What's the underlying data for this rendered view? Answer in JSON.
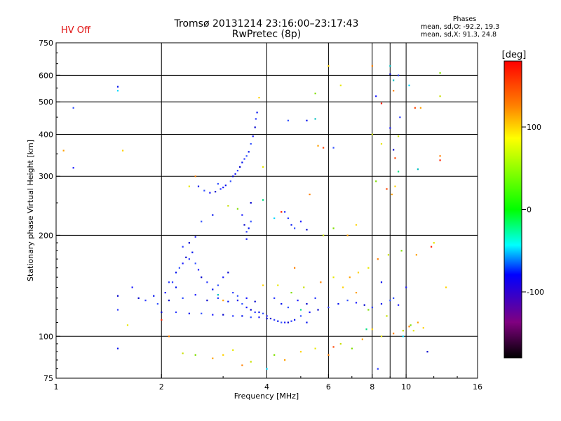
{
  "status": "HV Off",
  "title_line1": "Tromsø 20131214 23:16:00–23:17:43",
  "title_line2": "RwPretec (8p)",
  "phase_stats": {
    "title": "Phases",
    "line_o": "mean, sd,O: -92.2, 19.3",
    "line_x": "mean, sd,X:  91.3, 24.8"
  },
  "chart_data": {
    "type": "scatter",
    "xlabel": "Frequency [MHz]",
    "ylabel": "Stationary phase Virtual Height [km]",
    "x_scale": "log",
    "y_scale": "log",
    "xlim": [
      1,
      16
    ],
    "ylim": [
      75,
      750
    ],
    "x_ticks": [
      1,
      2,
      4,
      6,
      8,
      10,
      16
    ],
    "y_ticks": [
      75,
      100,
      200,
      300,
      400,
      500,
      600,
      750
    ],
    "x_gridlines": [
      2,
      4,
      6,
      8,
      9,
      10
    ],
    "y_gridlines": [
      100,
      200,
      300,
      400,
      500,
      600
    ],
    "grid": true,
    "colorbar": {
      "label": "[deg]",
      "range": [
        -180,
        180
      ],
      "ticks": [
        100,
        0,
        -100
      ],
      "colors": [
        "#ff0000",
        "#ff8000",
        "#ffff00",
        "#00ff00",
        "#00ffff",
        "#0000ff",
        "#800080",
        "#000000"
      ]
    },
    "series": [
      {
        "color_group": "o_mode_blue",
        "phase": -92.2,
        "points": [
          [
            1.65,
            140
          ],
          [
            1.72,
            130
          ],
          [
            1.8,
            128
          ],
          [
            1.9,
            132
          ],
          [
            1.95,
            125
          ],
          [
            2.05,
            135
          ],
          [
            2.1,
            128
          ],
          [
            2.15,
            145
          ],
          [
            2.2,
            155
          ],
          [
            2.25,
            160
          ],
          [
            2.3,
            165
          ],
          [
            2.35,
            172
          ],
          [
            2.4,
            170
          ],
          [
            2.45,
            178
          ],
          [
            2.5,
            165
          ],
          [
            2.55,
            158
          ],
          [
            2.6,
            150
          ],
          [
            2.7,
            145
          ],
          [
            2.8,
            138
          ],
          [
            2.9,
            142
          ],
          [
            3.0,
            150
          ],
          [
            3.1,
            155
          ],
          [
            3.2,
            135
          ],
          [
            3.3,
            128
          ],
          [
            3.4,
            125
          ],
          [
            3.5,
            122
          ],
          [
            3.6,
            120
          ],
          [
            3.7,
            118
          ],
          [
            3.8,
            118
          ],
          [
            3.9,
            117
          ],
          [
            4.0,
            115
          ],
          [
            4.1,
            113
          ],
          [
            4.2,
            112
          ],
          [
            4.3,
            111
          ],
          [
            4.4,
            110
          ],
          [
            4.5,
            110
          ],
          [
            4.6,
            110
          ],
          [
            4.7,
            111
          ],
          [
            4.8,
            112
          ],
          [
            5.0,
            115
          ],
          [
            5.3,
            118
          ],
          [
            5.6,
            120
          ],
          [
            6.0,
            122
          ],
          [
            6.4,
            125
          ],
          [
            6.8,
            128
          ],
          [
            7.2,
            126
          ],
          [
            7.6,
            124
          ],
          [
            8.0,
            122
          ],
          [
            8.5,
            125
          ],
          [
            9.0,
            128
          ],
          [
            9.5,
            124
          ],
          [
            2.0,
            118
          ],
          [
            2.2,
            118
          ],
          [
            2.4,
            117
          ],
          [
            2.6,
            117
          ],
          [
            2.8,
            116
          ],
          [
            3.0,
            116
          ],
          [
            3.2,
            115
          ],
          [
            3.4,
            115
          ],
          [
            3.6,
            114
          ],
          [
            3.8,
            114
          ],
          [
            4.0,
            113
          ],
          [
            2.1,
            145
          ],
          [
            2.2,
            140
          ],
          [
            2.3,
            130
          ],
          [
            2.5,
            133
          ],
          [
            2.7,
            128
          ],
          [
            2.9,
            130
          ],
          [
            3.1,
            127
          ],
          [
            3.3,
            132
          ],
          [
            3.5,
            130
          ],
          [
            3.7,
            127
          ],
          [
            4.2,
            130
          ],
          [
            4.4,
            125
          ],
          [
            4.6,
            122
          ],
          [
            4.9,
            128
          ],
          [
            5.2,
            125
          ],
          [
            5.5,
            130
          ],
          [
            2.55,
            280
          ],
          [
            2.65,
            272
          ],
          [
            2.75,
            268
          ],
          [
            2.85,
            270
          ],
          [
            2.95,
            275
          ],
          [
            3.05,
            282
          ],
          [
            3.15,
            290
          ],
          [
            3.25,
            305
          ],
          [
            3.35,
            320
          ],
          [
            3.45,
            338
          ],
          [
            3.55,
            355
          ],
          [
            3.6,
            375
          ],
          [
            3.65,
            395
          ],
          [
            3.7,
            420
          ],
          [
            3.72,
            445
          ],
          [
            3.75,
            465
          ],
          [
            2.9,
            285
          ],
          [
            3.0,
            278
          ],
          [
            3.2,
            300
          ],
          [
            3.3,
            312
          ],
          [
            3.4,
            330
          ],
          [
            3.5,
            345
          ],
          [
            3.4,
            230
          ],
          [
            3.45,
            215
          ],
          [
            3.5,
            205
          ],
          [
            3.55,
            210
          ],
          [
            3.6,
            220
          ],
          [
            3.5,
            195
          ],
          [
            3.6,
            250
          ],
          [
            4.6,
            225
          ],
          [
            4.7,
            215
          ],
          [
            4.8,
            210
          ],
          [
            5.0,
            220
          ],
          [
            5.2,
            208
          ],
          [
            4.5,
            235
          ],
          [
            2.8,
            230
          ],
          [
            2.6,
            220
          ],
          [
            2.5,
            198
          ],
          [
            2.4,
            190
          ],
          [
            2.3,
            185
          ],
          [
            1.5,
            555
          ],
          [
            1.12,
            480
          ],
          [
            1.12,
            318
          ],
          [
            1.5,
            132
          ],
          [
            1.5,
            120
          ],
          [
            1.5,
            92
          ],
          [
            6.2,
            365
          ],
          [
            8.2,
            520
          ],
          [
            9.0,
            605
          ],
          [
            9.5,
            600
          ],
          [
            5.2,
            440
          ],
          [
            4.6,
            440
          ],
          [
            9.0,
            418
          ],
          [
            9.2,
            360
          ],
          [
            9.6,
            450
          ],
          [
            8.5,
            145
          ],
          [
            9.2,
            130
          ],
          [
            10.0,
            140
          ],
          [
            11.5,
            90
          ],
          [
            8.3,
            80
          ],
          [
            5.2,
            110
          ]
        ]
      },
      {
        "color_group": "mixed_orange_yellow_green",
        "phase": 91.3,
        "points": [
          [
            1.05,
            358
          ],
          [
            1.55,
            358
          ],
          [
            1.6,
            108
          ],
          [
            2.1,
            100
          ],
          [
            2.3,
            89
          ],
          [
            2.5,
            88
          ],
          [
            2.8,
            86
          ],
          [
            3.0,
            88
          ],
          [
            3.2,
            91
          ],
          [
            3.4,
            82
          ],
          [
            3.6,
            84
          ],
          [
            4.2,
            88
          ],
          [
            4.5,
            85
          ],
          [
            5.0,
            90
          ],
          [
            5.5,
            92
          ],
          [
            6.0,
            88
          ],
          [
            6.5,
            95
          ],
          [
            7.0,
            92
          ],
          [
            7.5,
            98
          ],
          [
            8.0,
            105
          ],
          [
            8.5,
            100
          ],
          [
            9.2,
            102
          ],
          [
            9.8,
            104
          ],
          [
            10.3,
            108
          ],
          [
            10.8,
            110
          ],
          [
            11.2,
            106
          ],
          [
            10.5,
            104
          ],
          [
            10.2,
            107
          ],
          [
            8.8,
            115
          ],
          [
            7.8,
            120
          ],
          [
            7.2,
            135
          ],
          [
            6.6,
            140
          ],
          [
            6.2,
            150
          ],
          [
            5.7,
            145
          ],
          [
            5.1,
            140
          ],
          [
            4.7,
            135
          ],
          [
            6.9,
            150
          ],
          [
            7.3,
            155
          ],
          [
            7.8,
            160
          ],
          [
            8.3,
            170
          ],
          [
            8.9,
            175
          ],
          [
            9.7,
            180
          ],
          [
            10.7,
            175
          ],
          [
            13.0,
            140
          ],
          [
            12.0,
            190
          ],
          [
            12.5,
            345
          ],
          [
            12.5,
            520
          ],
          [
            12.5,
            610
          ],
          [
            11.0,
            480
          ],
          [
            6.0,
            640
          ],
          [
            6.5,
            560
          ],
          [
            8.0,
            640
          ],
          [
            8.0,
            400
          ],
          [
            8.2,
            290
          ],
          [
            9.1,
            265
          ],
          [
            9.3,
            280
          ],
          [
            8.5,
            375
          ],
          [
            9.2,
            540
          ],
          [
            9.5,
            395
          ],
          [
            5.5,
            530
          ],
          [
            5.6,
            370
          ],
          [
            3.8,
            515
          ],
          [
            3.9,
            320
          ],
          [
            5.3,
            265
          ],
          [
            5.8,
            200
          ],
          [
            6.2,
            210
          ],
          [
            6.8,
            200
          ],
          [
            7.2,
            215
          ],
          [
            2.4,
            280
          ],
          [
            2.5,
            300
          ],
          [
            3.1,
            245
          ],
          [
            3.3,
            240
          ],
          [
            3.0,
            128
          ],
          [
            3.9,
            142
          ],
          [
            4.3,
            142
          ],
          [
            4.8,
            160
          ]
        ]
      },
      {
        "color_group": "cyan_red_other",
        "phase": 0,
        "points": [
          [
            1.5,
            540
          ],
          [
            8.5,
            495
          ],
          [
            9.2,
            580
          ],
          [
            9.3,
            340
          ],
          [
            9.5,
            310
          ],
          [
            10.2,
            560
          ],
          [
            12.5,
            335
          ],
          [
            5.5,
            445
          ],
          [
            5.8,
            365
          ],
          [
            3.9,
            255
          ],
          [
            4.2,
            225
          ],
          [
            4.4,
            235
          ],
          [
            9.0,
            640
          ],
          [
            10.6,
            480
          ],
          [
            5.0,
            120
          ],
          [
            4.0,
            80
          ],
          [
            2.0,
            112
          ],
          [
            2.9,
            133
          ],
          [
            6.2,
            93
          ],
          [
            7.7,
            105
          ],
          [
            9.8,
            100
          ],
          [
            11.8,
            185
          ],
          [
            10.8,
            315
          ],
          [
            8.8,
            275
          ]
        ]
      }
    ]
  }
}
